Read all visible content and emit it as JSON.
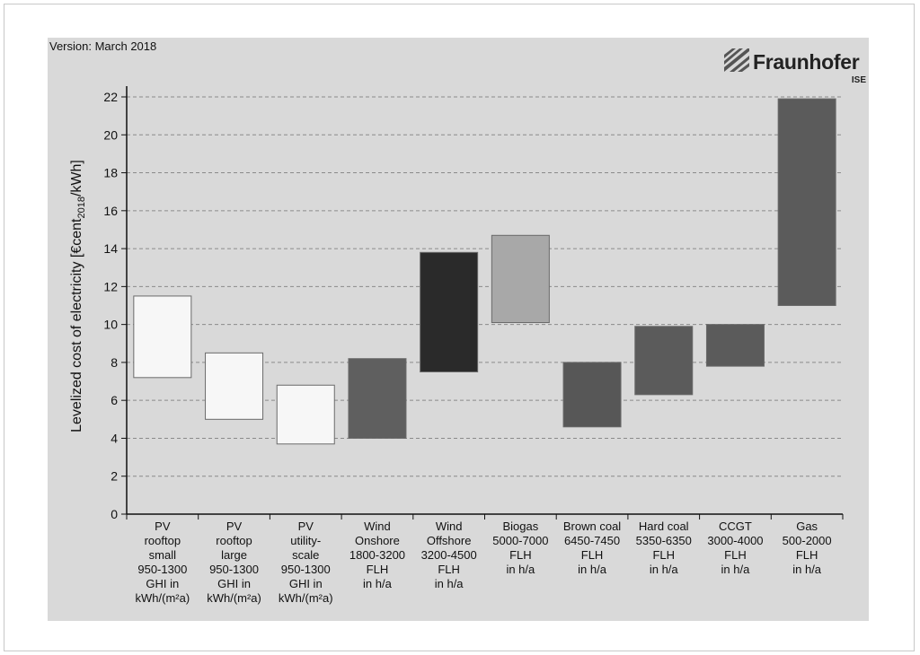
{
  "version_text": "Version: March 2018",
  "logo": {
    "name": "Fraunhofer",
    "sub": "ISE"
  },
  "chart_data": {
    "type": "bar",
    "ylabel": "Levelized cost of electricity [€cent2018/kWh]",
    "ylim": [
      0,
      22
    ],
    "yticks": [
      0,
      2,
      4,
      6,
      8,
      10,
      12,
      14,
      16,
      18,
      20,
      22
    ],
    "grid": "horizontal dashed",
    "categories": [
      {
        "lines": [
          "PV",
          "rooftop",
          "small",
          "950-1300",
          "GHI in",
          "kWh/(m²a)"
        ],
        "low": 7.2,
        "high": 11.5,
        "color": "#f7f7f7"
      },
      {
        "lines": [
          "PV",
          "rooftop",
          "large",
          "950-1300",
          "GHI in",
          "kWh/(m²a)"
        ],
        "low": 5.0,
        "high": 8.5,
        "color": "#f7f7f7"
      },
      {
        "lines": [
          "PV",
          "utility-",
          "scale",
          "950-1300",
          "GHI in",
          "kWh/(m²a)"
        ],
        "low": 3.7,
        "high": 6.8,
        "color": "#f7f7f7"
      },
      {
        "lines": [
          "Wind",
          "Onshore",
          "1800-3200",
          "FLH",
          "in h/a"
        ],
        "low": 4.0,
        "high": 8.2,
        "color": "#5f5f5f"
      },
      {
        "lines": [
          "Wind",
          "Offshore",
          "3200-4500",
          "FLH",
          "in h/a"
        ],
        "low": 7.5,
        "high": 13.8,
        "color": "#2a2a2a"
      },
      {
        "lines": [
          "Biogas",
          "5000-7000",
          "FLH",
          "in h/a"
        ],
        "low": 10.1,
        "high": 14.7,
        "color": "#a8a8a8"
      },
      {
        "lines": [
          "Brown coal",
          "6450-7450",
          "FLH",
          "in h/a"
        ],
        "low": 4.6,
        "high": 8.0,
        "color": "#575757"
      },
      {
        "lines": [
          "Hard coal",
          "5350-6350",
          "FLH",
          "in h/a"
        ],
        "low": 6.3,
        "high": 9.9,
        "color": "#5b5b5b"
      },
      {
        "lines": [
          "CCGT",
          "3000-4000",
          "FLH",
          "in h/a"
        ],
        "low": 7.8,
        "high": 10.0,
        "color": "#5b5b5b"
      },
      {
        "lines": [
          "Gas",
          "500-2000",
          "FLH",
          "in h/a"
        ],
        "low": 11.0,
        "high": 21.9,
        "color": "#5b5b5b"
      }
    ]
  }
}
